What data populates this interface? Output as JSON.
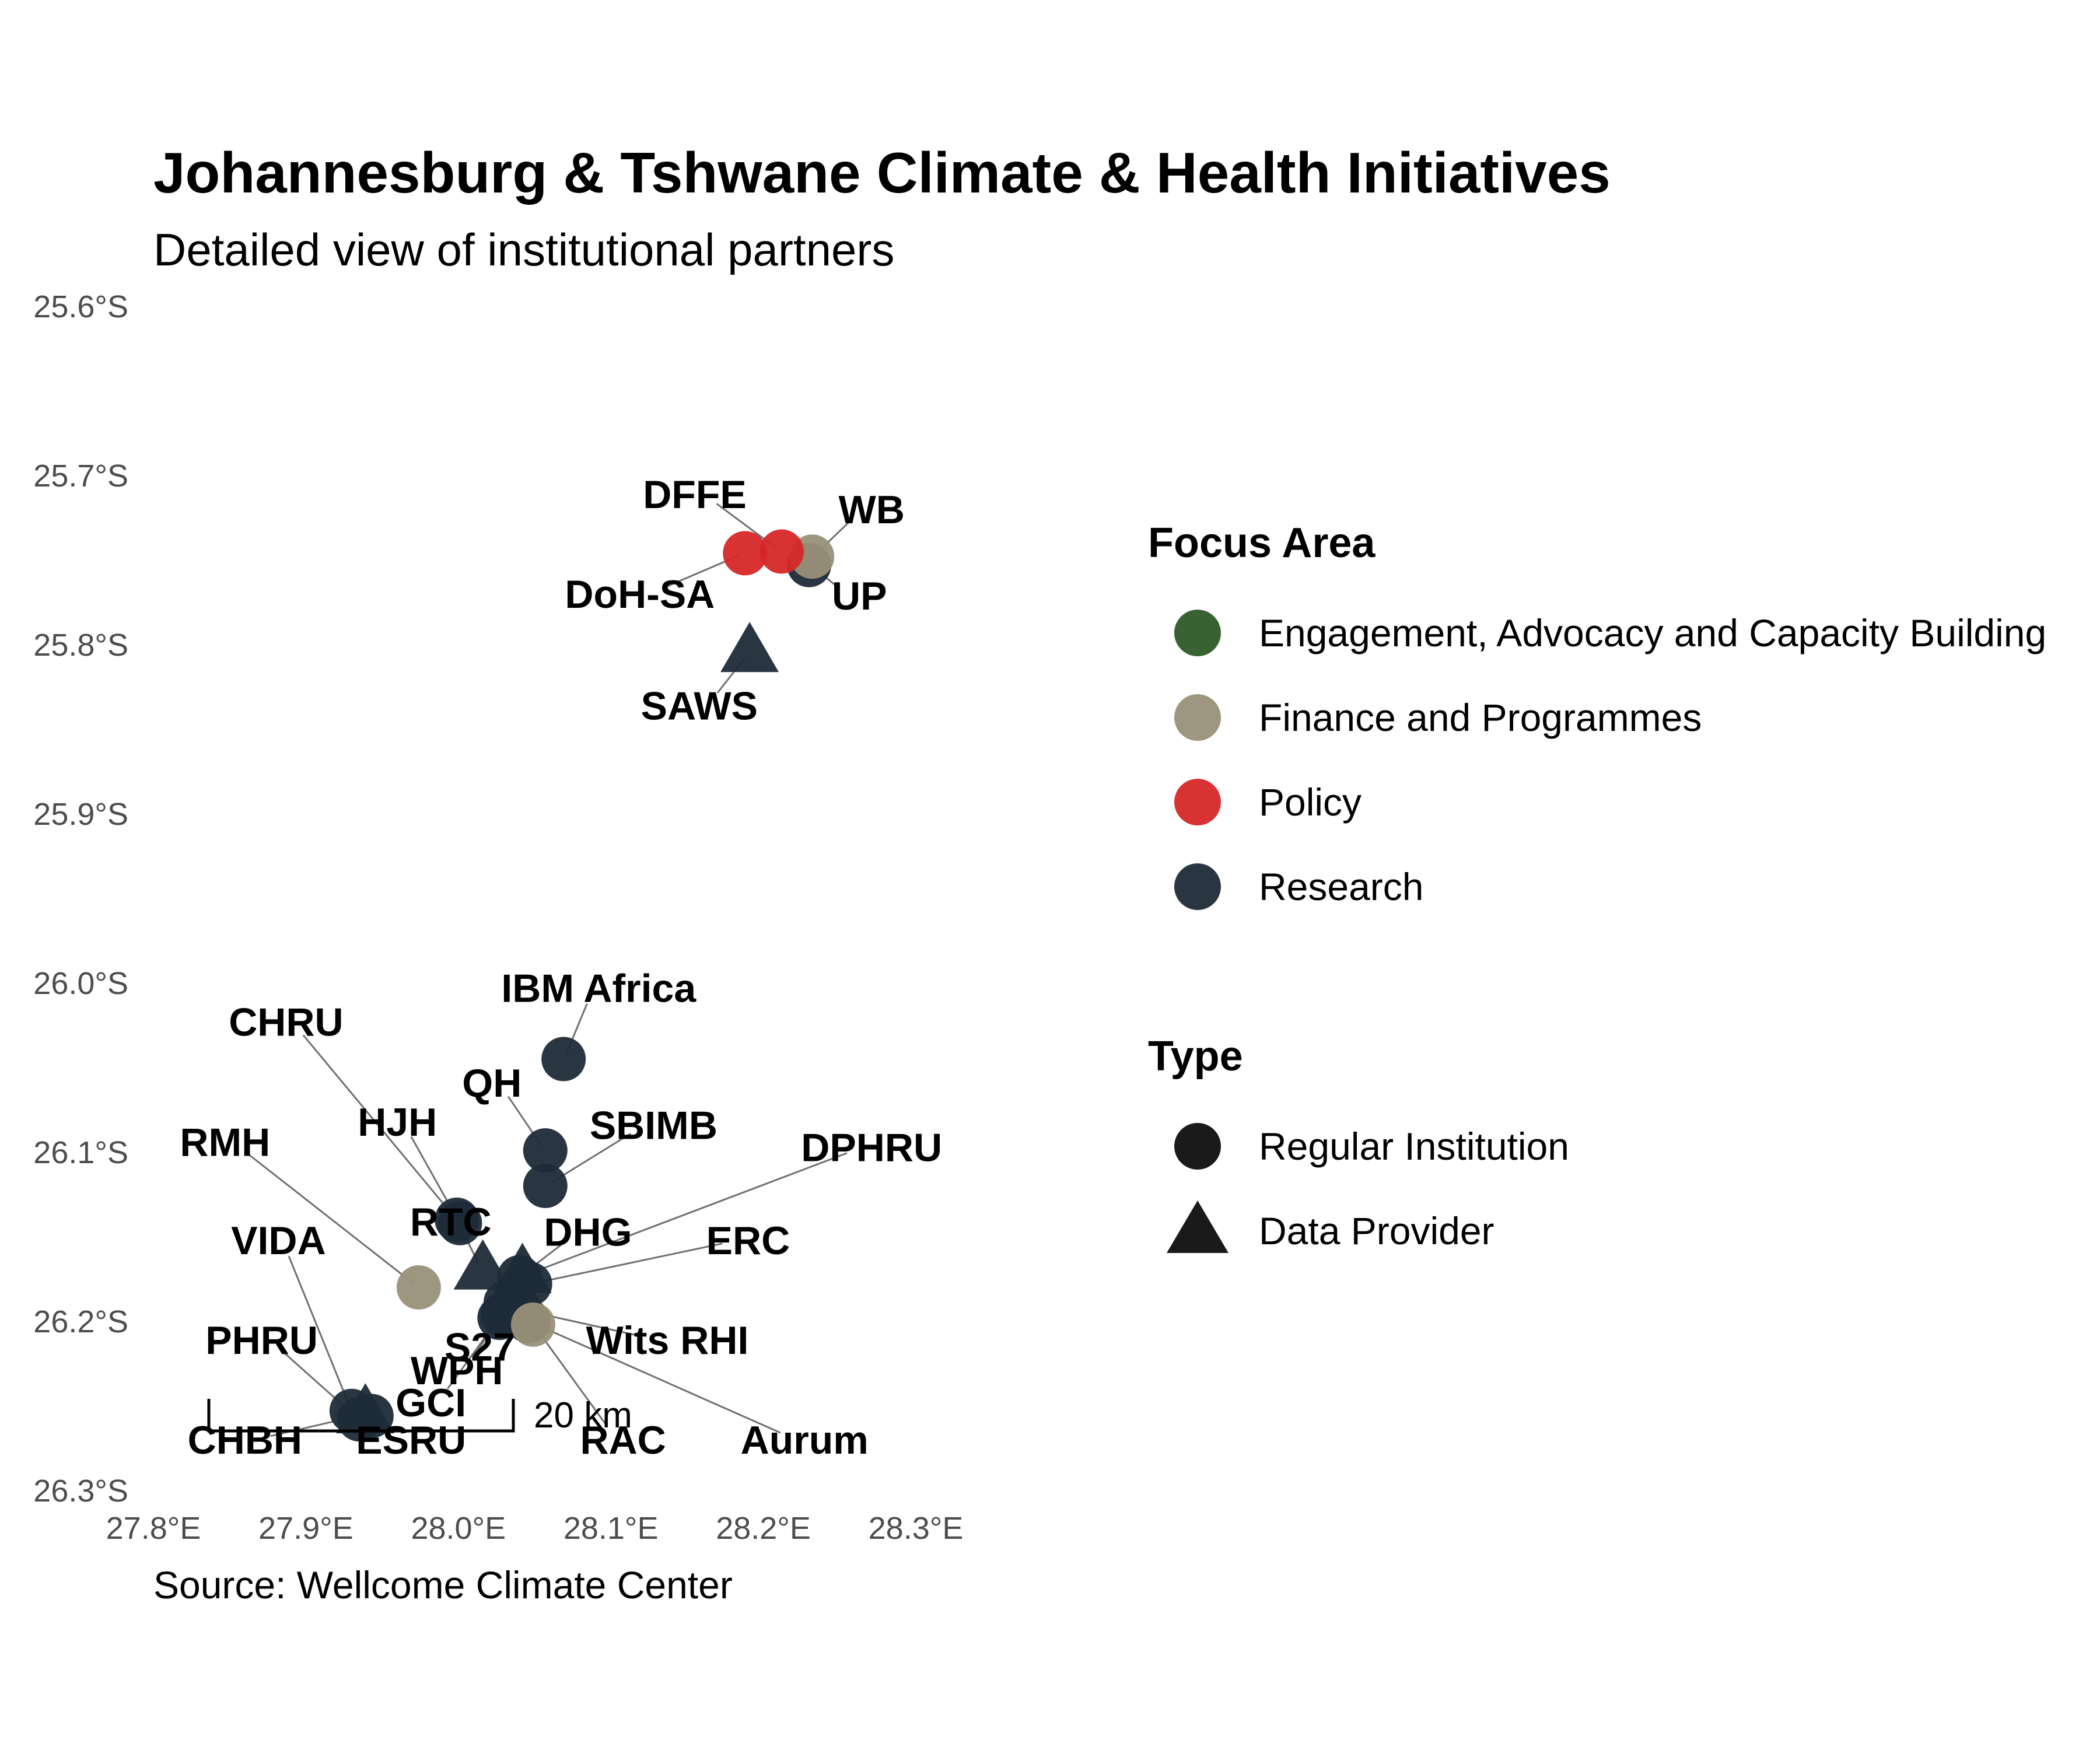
{
  "title": "Johannesburg & Tshwane Climate & Health Initiatives",
  "subtitle": "Detailed view of institutional partners",
  "caption": "Source: Wellcome Climate Center",
  "map_data": {
    "type": "point-map",
    "x_ticks": [
      "27.8°E",
      "27.9°E",
      "28.0°E",
      "28.1°E",
      "28.2°E",
      "28.3°E"
    ],
    "y_ticks": [
      "25.6°S",
      "25.7°S",
      "25.8°S",
      "25.9°S",
      "26.0°S",
      "26.1°S",
      "26.2°S",
      "26.3°S"
    ],
    "lon_range": [
      27.8,
      28.3
    ],
    "lat_range": [
      -26.3,
      -25.6
    ],
    "grid": false,
    "scale_bar": {
      "label": "20 km"
    },
    "colors": {
      "Engagement, Advocacy and Capacity Building": "#2d5a27",
      "Finance and Programmes": "#9a9079",
      "Policy": "#d62728",
      "Research": "#1e2b38"
    },
    "points": [
      {
        "label": "DFFE",
        "lon": 28.212,
        "lat": -25.745,
        "focus": "Policy",
        "type": "Regular Institution",
        "label_lon": 28.155,
        "label_lat": -25.711
      },
      {
        "label": "WB",
        "lon": 28.232,
        "lat": -25.748,
        "focus": "Finance and Programmes",
        "type": "Regular Institution",
        "label_lon": 28.271,
        "label_lat": -25.72
      },
      {
        "label": "DoH-SA",
        "lon": 28.188,
        "lat": -25.746,
        "focus": "Policy",
        "type": "Regular Institution",
        "label_lon": 28.119,
        "label_lat": -25.77
      },
      {
        "label": "UP",
        "lon": 28.23,
        "lat": -25.753,
        "focus": "Research",
        "type": "Regular Institution",
        "label_lon": 28.263,
        "label_lat": -25.771
      },
      {
        "label": "SAWS",
        "lon": 28.191,
        "lat": -25.805,
        "focus": "Research",
        "type": "Data Provider",
        "label_lon": 28.158,
        "label_lat": -25.836
      },
      {
        "label": "IBM Africa",
        "lon": 28.069,
        "lat": -26.045,
        "focus": "Research",
        "type": "Regular Institution",
        "label_lon": 28.092,
        "label_lat": -26.003
      },
      {
        "label": "QH",
        "lon": 28.057,
        "lat": -26.099,
        "focus": "Research",
        "type": "Regular Institution",
        "label_lon": 28.022,
        "label_lat": -26.059
      },
      {
        "label": "SBIMB",
        "lon": 28.057,
        "lat": -26.12,
        "focus": "Research",
        "type": "Regular Institution",
        "label_lon": 28.128,
        "label_lat": -26.084
      },
      {
        "label": "CHRU",
        "lon": 27.999,
        "lat": -26.14,
        "focus": "Research",
        "type": "Regular Institution",
        "label_lon": 27.887,
        "label_lat": -26.023
      },
      {
        "label": "HJH",
        "lon": 28.001,
        "lat": -26.142,
        "focus": "Research",
        "type": "Regular Institution",
        "label_lon": 27.96,
        "label_lat": -26.082
      },
      {
        "label": "RMH",
        "lon": 27.974,
        "lat": -26.18,
        "focus": "Finance and Programmes",
        "type": "Regular Institution",
        "label_lon": 27.847,
        "label_lat": -26.094
      },
      {
        "label": "RTC",
        "lon": 28.016,
        "lat": -26.17,
        "focus": "Research",
        "type": "Data Provider",
        "label_lon": 27.995,
        "label_lat": -26.141
      },
      {
        "label": "DHG",
        "lon": 28.042,
        "lat": -26.172,
        "focus": "Research",
        "type": "Data Provider",
        "label_lon": 28.085,
        "label_lat": -26.147
      },
      {
        "label": "DPHRU",
        "lon": 28.04,
        "lat": -26.174,
        "focus": "Research",
        "type": "Regular Institution",
        "label_lon": 28.271,
        "label_lat": -26.097
      },
      {
        "label": "ERC",
        "lon": 28.047,
        "lat": -26.178,
        "focus": "Research",
        "type": "Regular Institution",
        "label_lon": 28.19,
        "label_lat": -26.152
      },
      {
        "label": "VIDA",
        "lon": 27.93,
        "lat": -26.253,
        "focus": "Research",
        "type": "Regular Institution",
        "label_lon": 27.882,
        "label_lat": -26.152
      },
      {
        "label": "S27",
        "lon": 28.031,
        "lat": -26.189,
        "focus": "Research",
        "type": "Regular Institution",
        "label_lon": 28.014,
        "label_lat": -26.215
      },
      {
        "label": "Wits RHI",
        "lon": 28.04,
        "lat": -26.193,
        "focus": "Research",
        "type": "Regular Institution",
        "label_lon": 28.137,
        "label_lat": -26.211
      },
      {
        "label": "Aurum",
        "lon": 28.046,
        "lat": -26.2,
        "focus": "Research",
        "type": "Regular Institution",
        "label_lon": 28.227,
        "label_lat": -26.27
      },
      {
        "label": "RAC",
        "lon": 28.049,
        "lat": -26.202,
        "focus": "Finance and Programmes",
        "type": "Regular Institution",
        "label_lon": 28.108,
        "label_lat": -26.27
      },
      {
        "label": "WPH",
        "lon": 28.029,
        "lat": -26.196,
        "focus": "Research",
        "type": "Regular Institution",
        "label_lon": 27.999,
        "label_lat": -26.229
      },
      {
        "label": "GCI",
        "lon": 28.027,
        "lat": -26.198,
        "focus": "Research",
        "type": "Regular Institution",
        "label_lon": 27.982,
        "label_lat": -26.248
      },
      {
        "label": "PHRU",
        "lon": 27.935,
        "lat": -26.258,
        "focus": "Research",
        "type": "Regular Institution",
        "label_lon": 27.871,
        "label_lat": -26.211
      },
      {
        "label": "CHBH",
        "lon": 27.939,
        "lat": -26.255,
        "focus": "Research",
        "type": "Data Provider",
        "label_lon": 27.86,
        "label_lat": -26.27
      },
      {
        "label": "ESRU",
        "lon": 27.943,
        "lat": -26.256,
        "focus": "Research",
        "type": "Regular Institution",
        "label_lon": 27.969,
        "label_lat": -26.27
      }
    ]
  },
  "legend": {
    "focus": {
      "title": "Focus Area",
      "items": [
        {
          "label": "Engagement, Advocacy and Capacity Building",
          "color": "#2d5a27"
        },
        {
          "label": "Finance and Programmes",
          "color": "#9a9079"
        },
        {
          "label": "Policy",
          "color": "#d62728"
        },
        {
          "label": "Research",
          "color": "#1e2b38"
        }
      ]
    },
    "type": {
      "title": "Type",
      "items": [
        {
          "label": "Regular Institution",
          "shape": "circle"
        },
        {
          "label": "Data Provider",
          "shape": "triangle"
        }
      ]
    }
  }
}
